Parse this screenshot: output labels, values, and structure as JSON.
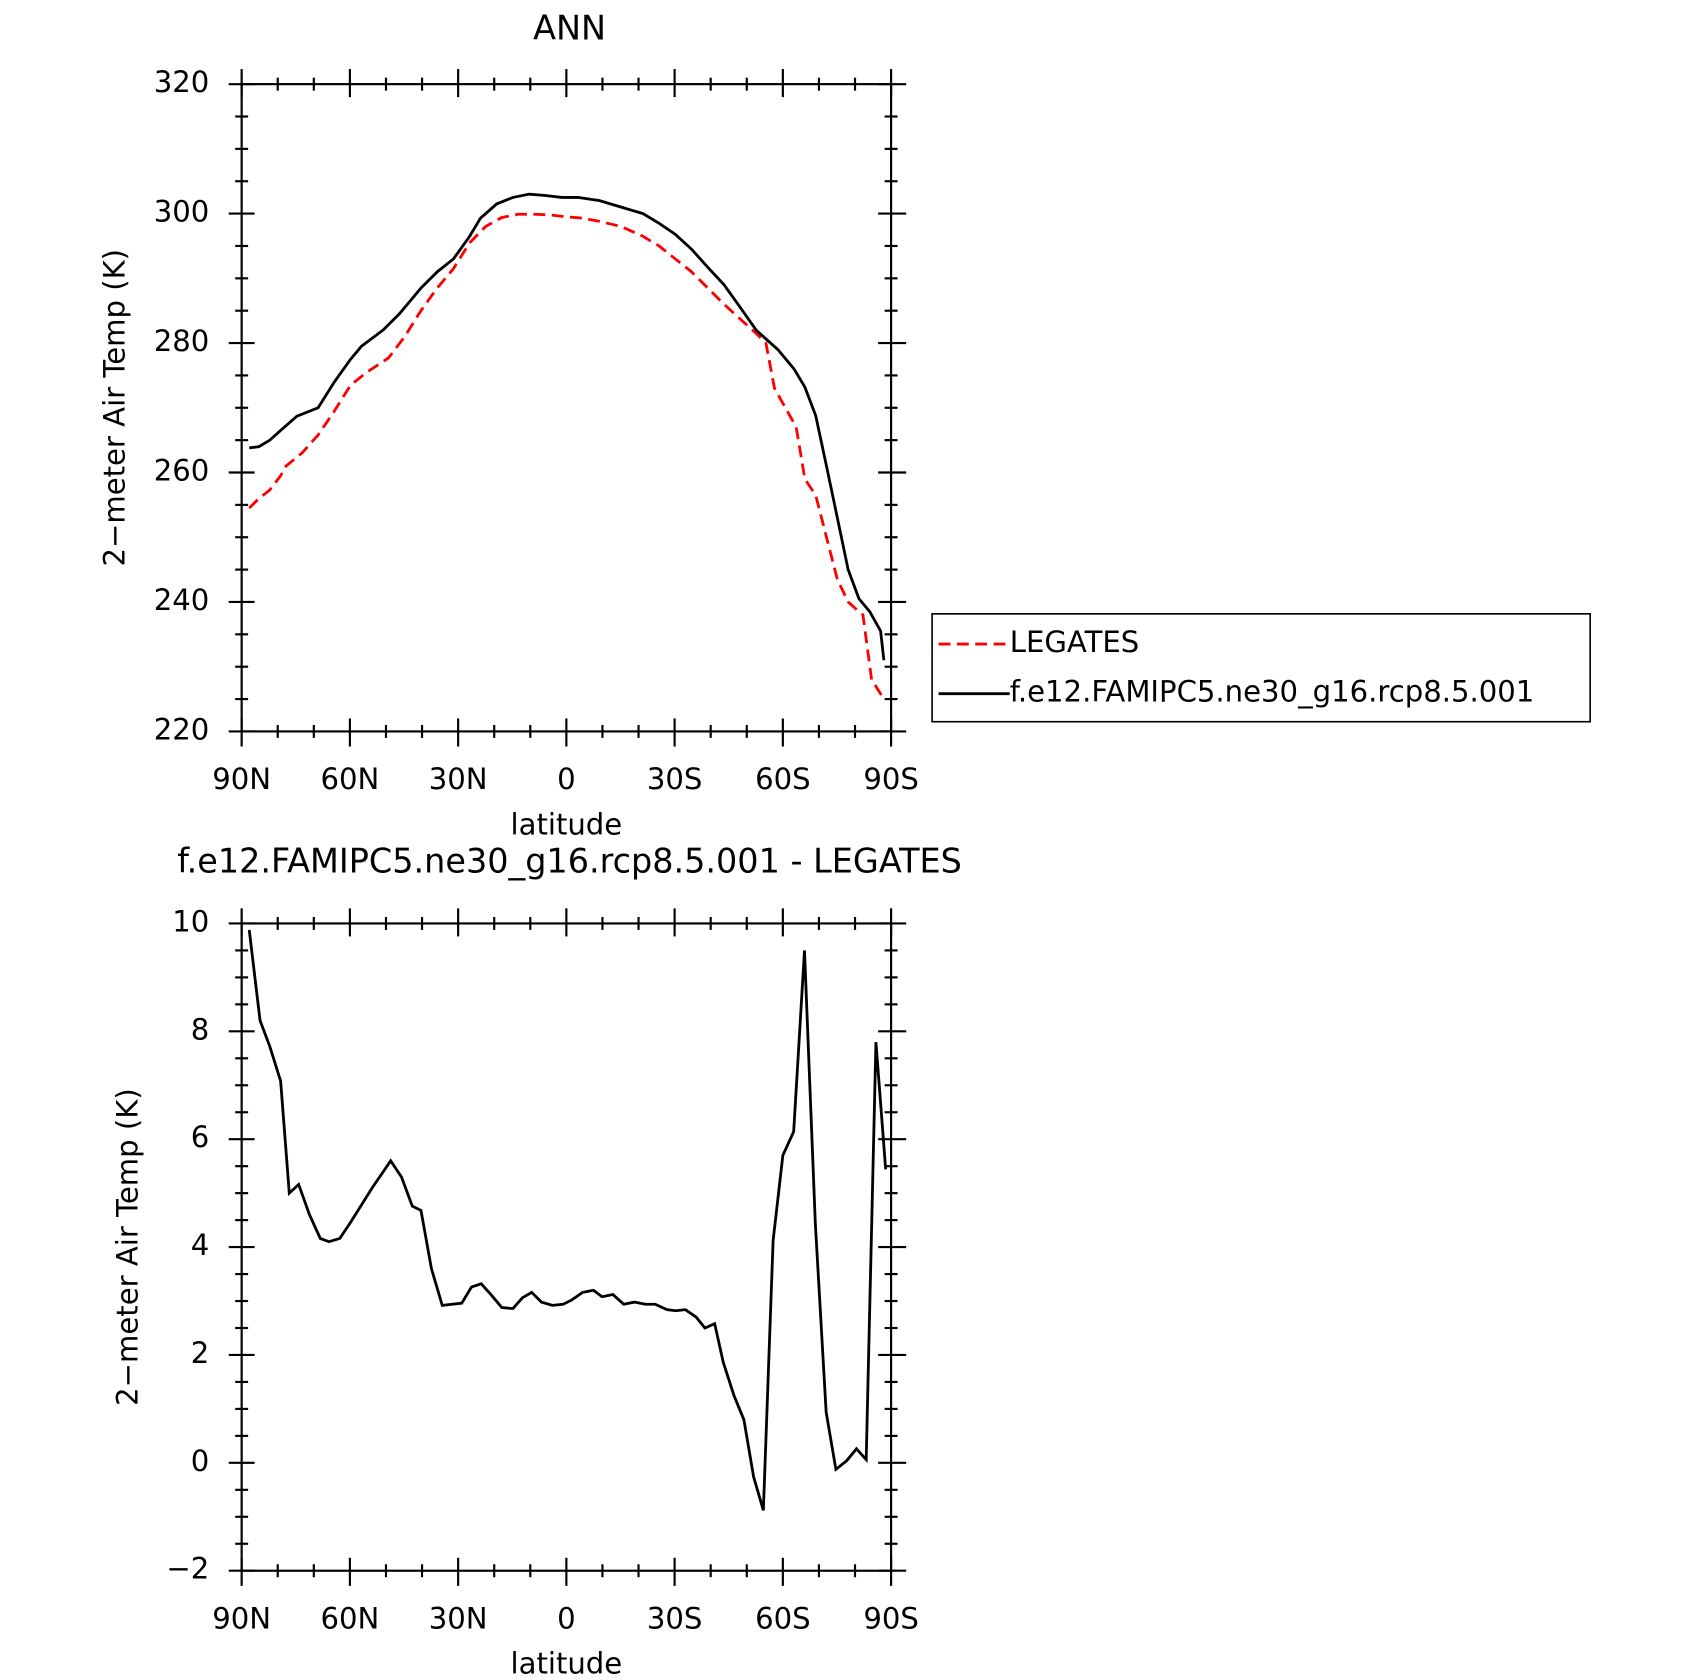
{
  "chart_data": [
    {
      "type": "line",
      "title": "ANN",
      "xlabel": "latitude",
      "ylabel": "2−meter Air Temp (K)",
      "xlim": [
        90,
        -90
      ],
      "xticks": [
        {
          "value": 90,
          "label": "90N"
        },
        {
          "value": 60,
          "label": "60N"
        },
        {
          "value": 30,
          "label": "30N"
        },
        0,
        {
          "value": -30,
          "label": "30S"
        },
        {
          "value": -60,
          "label": "60S"
        },
        {
          "value": -90,
          "label": "90S"
        }
      ],
      "ylim": [
        220,
        320
      ],
      "yticks": [
        220,
        240,
        260,
        280,
        300,
        320
      ],
      "legend": "right",
      "series": [
        {
          "name": "LEGATES",
          "color": "#ff0000",
          "style": "dashed",
          "x": [
            87.9,
            85.2,
            82.2,
            79.2,
            77.7,
            73.3,
            68.8,
            64.3,
            59.8,
            55.3,
            49.3,
            44.8,
            40.3,
            35.8,
            31.3,
            26.8,
            22.4,
            17.9,
            13.4,
            9.0,
            4.5,
            0,
            -4.5,
            -9.2,
            -15.2,
            -21.2,
            -25.7,
            -30.2,
            -34.7,
            -39.2,
            -43.7,
            -48.2,
            -52.6,
            -55.3,
            -57.7,
            -60.7,
            -63.7,
            -66.1,
            -69.1,
            -72.1,
            -75.1,
            -78.1,
            -81.1,
            -82.2,
            -84.6,
            -88.0
          ],
          "values": [
            254.5,
            256,
            257.3,
            259.5,
            261,
            263,
            265.8,
            269.5,
            273.5,
            275.5,
            277.7,
            281,
            285,
            288.5,
            291.5,
            295.5,
            298,
            299.4,
            299.9,
            299.9,
            299.8,
            299.5,
            299.3,
            298.8,
            298,
            296.5,
            295,
            293,
            291,
            288.5,
            286,
            283.7,
            281.5,
            280,
            273,
            270,
            267,
            259,
            256.5,
            250,
            243.5,
            240,
            238.5,
            238,
            228,
            225
          ]
        },
        {
          "name": "f.e12.FAMIPC5.ne30_g16.rcp8.5.001",
          "color": "#000000",
          "style": "solid",
          "x": [
            87.9,
            85.2,
            82.2,
            79.2,
            74.7,
            68.8,
            64.3,
            59.8,
            56.8,
            50.8,
            46.3,
            40.3,
            35.8,
            31.3,
            26.8,
            23.8,
            19.3,
            14.8,
            10.3,
            5.8,
            1.3,
            -3.2,
            -9.2,
            -15.2,
            -21.2,
            -25.7,
            -30.2,
            -34.7,
            -39.2,
            -43.7,
            -48.2,
            -52.6,
            -58.6,
            -63.1,
            -66.1,
            -69.1,
            -72.1,
            -75.1,
            -78.1,
            -81.1,
            -84.1,
            -87.1,
            -88.0
          ],
          "values": [
            263.8,
            264,
            265,
            266.5,
            268.7,
            270,
            274,
            277.5,
            279.5,
            282,
            284.5,
            288.5,
            291,
            293,
            296.5,
            299.3,
            301.5,
            302.5,
            303,
            302.8,
            302.5,
            302.5,
            302,
            301,
            300,
            298.5,
            296.8,
            294.5,
            291.7,
            289,
            285.5,
            282,
            279,
            276,
            273.2,
            268.8,
            261,
            253,
            245,
            240.5,
            238.5,
            235.5,
            231
          ]
        }
      ]
    },
    {
      "type": "line",
      "title": "f.e12.FAMIPC5.ne30_g16.rcp8.5.001 - LEGATES",
      "xlabel": "latitude",
      "ylabel": "2−meter Air Temp (K)",
      "xlim": [
        90,
        -90
      ],
      "xticks": [
        {
          "value": 90,
          "label": "90N"
        },
        {
          "value": 60,
          "label": "60N"
        },
        {
          "value": 30,
          "label": "30N"
        },
        0,
        {
          "value": -30,
          "label": "30S"
        },
        {
          "value": -60,
          "label": "60S"
        },
        {
          "value": -90,
          "label": "90S"
        }
      ],
      "ylim": [
        -2,
        10
      ],
      "yticks": [
        {
          "value": -2,
          "label": "−2"
        },
        0,
        2,
        4,
        6,
        8,
        10
      ],
      "series": [
        {
          "color": "#000000",
          "style": "solid",
          "x": [
            87.9,
            84.9,
            82.2,
            79.2,
            76.8,
            74.2,
            71.2,
            68.2,
            65.8,
            62.8,
            59.8,
            53.8,
            48.7,
            45.7,
            42.7,
            40.3,
            37.4,
            34.4,
            29.0,
            26.3,
            23.6,
            20.9,
            17.9,
            14.8,
            12.2,
            9.6,
            6.9,
            3.9,
            0.9,
            -1.5,
            -4.5,
            -7.5,
            -9.9,
            -12.9,
            -15.9,
            -18.9,
            -21.9,
            -24.6,
            -27.9,
            -30.3,
            -33.0,
            -36.0,
            -38.4,
            -41.1,
            -43.5,
            -46.5,
            -49.2,
            -51.9,
            -54.6,
            -57.3,
            -60.0,
            -63.0,
            -66.0,
            -69.0,
            -72.0,
            -74.7,
            -77.7,
            -80.4,
            -83.1,
            -85.8,
            -88.5
          ],
          "values": [
            9.88,
            8.2,
            7.72,
            7.08,
            5.0,
            5.16,
            4.6,
            4.16,
            4.1,
            4.16,
            4.46,
            5.1,
            5.6,
            5.3,
            4.76,
            4.68,
            3.6,
            2.92,
            2.96,
            3.26,
            3.32,
            3.12,
            2.88,
            2.86,
            3.06,
            3.16,
            2.98,
            2.92,
            2.94,
            3.02,
            3.16,
            3.2,
            3.08,
            3.12,
            2.94,
            2.98,
            2.94,
            2.94,
            2.84,
            2.82,
            2.84,
            2.7,
            2.5,
            2.58,
            1.86,
            1.24,
            0.8,
            -0.26,
            -0.88,
            4.12,
            5.7,
            6.14,
            9.5,
            4.44,
            0.94,
            -0.12,
            0.04,
            0.26,
            0.06,
            7.8,
            5.44
          ]
        }
      ]
    }
  ]
}
